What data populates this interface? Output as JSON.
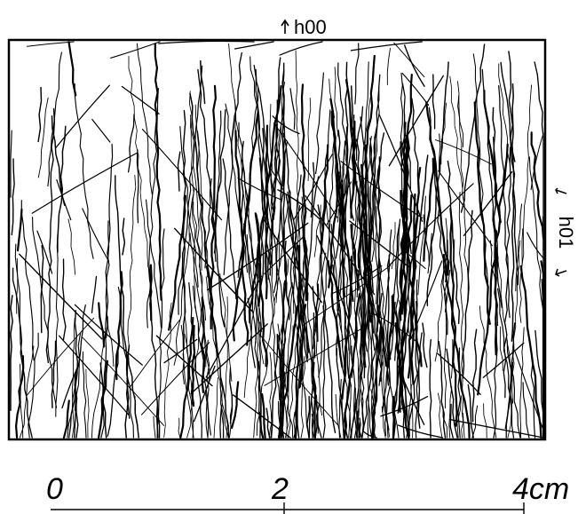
{
  "figure": {
    "label_top": "h00",
    "label_right": "h01",
    "scale_labels": [
      "0",
      "2",
      "4cm"
    ]
  },
  "colors": {
    "ink": "#000000",
    "paper": "#ffffff"
  }
}
